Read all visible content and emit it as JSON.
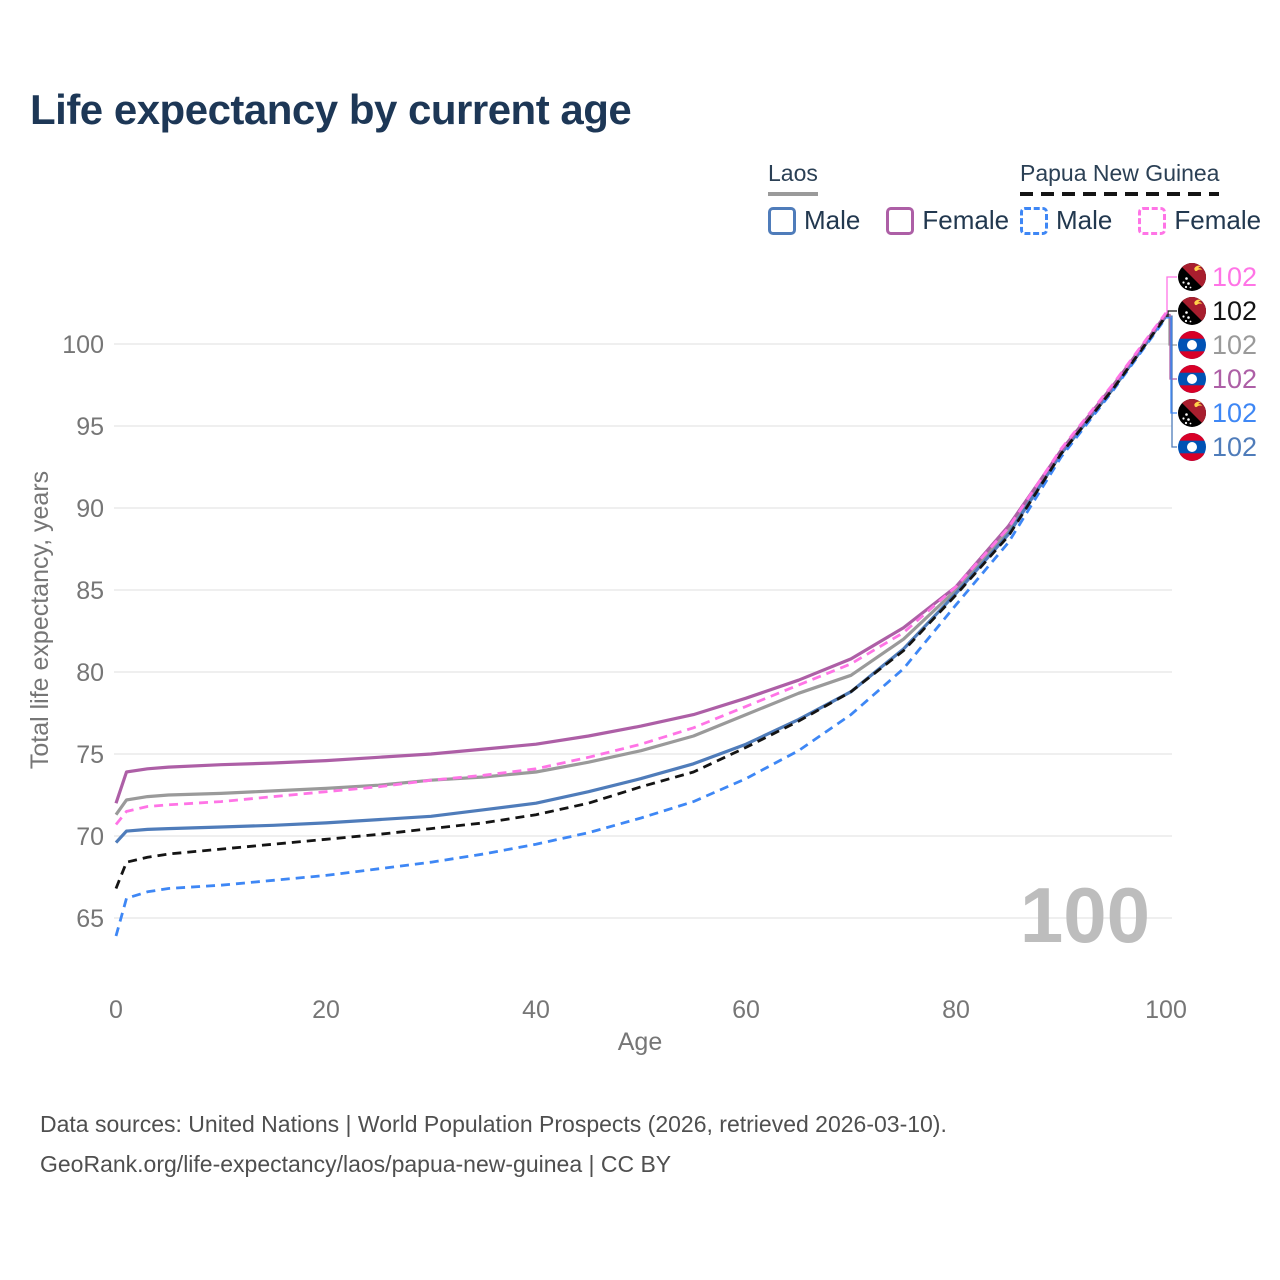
{
  "legend": {
    "laos": {
      "label": "Laos",
      "male": "Male",
      "female": "Female"
    },
    "png": {
      "label": "Papua New Guinea",
      "male": "Male",
      "female": "Female"
    }
  },
  "footer": {
    "line1": "Data sources: United Nations | World Population Prospects (2026, retrieved 2026-03-10).",
    "line2": "GeoRank.org/life-expectancy/laos/papua-new-guinea | CC BY"
  },
  "watermark": "100",
  "colors": {
    "title": "#1d3756",
    "tick_text": "#767676",
    "gridline": "#eaeaea",
    "watermark": "#bdbdbd",
    "footer_text": "#4f4f4f",
    "laos_flag_red": "#d80027",
    "laos_flag_blue": "#0052b4",
    "png_flag_red": "#a81e2e",
    "png_flag_black": "#000000",
    "png_flag_yellow": "#ffd24a"
  },
  "chart_data": {
    "type": "line",
    "title": "Life expectancy by current age",
    "xlabel": "Age",
    "ylabel": "Total life expectancy, years",
    "x_ticks": [
      0,
      20,
      40,
      60,
      80,
      100
    ],
    "y_ticks": [
      65,
      70,
      75,
      80,
      85,
      90,
      95,
      100
    ],
    "xlim": [
      0,
      100
    ],
    "ylim": [
      63,
      103
    ],
    "grid": "horizontal",
    "legend_position": "top-right",
    "x": [
      0,
      1,
      3,
      5,
      10,
      15,
      20,
      25,
      30,
      35,
      40,
      45,
      50,
      55,
      60,
      65,
      70,
      75,
      80,
      85,
      90,
      95,
      100
    ],
    "series": [
      {
        "id": "laos-total",
        "name": "Laos (both sexes)",
        "country": "Laos",
        "sex": "both",
        "style": "solid",
        "color": "#9a9a9a",
        "flag": "laos",
        "end_label": "102",
        "end_label_row": 2,
        "values": [
          71.3,
          72.2,
          72.4,
          72.5,
          72.6,
          72.75,
          72.9,
          73.1,
          73.4,
          73.6,
          73.9,
          74.5,
          75.2,
          76.1,
          77.4,
          78.7,
          79.8,
          82.0,
          85.0,
          88.6,
          93.4,
          97.4,
          101.7
        ]
      },
      {
        "id": "laos-male",
        "name": "Laos Male",
        "country": "Laos",
        "sex": "male",
        "style": "solid",
        "color": "#4f7cba",
        "flag": "laos",
        "end_label": "102",
        "end_label_row": 5,
        "values": [
          69.6,
          70.3,
          70.4,
          70.45,
          70.55,
          70.65,
          70.8,
          71.0,
          71.2,
          71.6,
          72.0,
          72.7,
          73.5,
          74.4,
          75.6,
          77.1,
          78.8,
          81.4,
          84.8,
          88.4,
          93.3,
          97.3,
          101.7
        ]
      },
      {
        "id": "laos-female",
        "name": "Laos Female",
        "country": "Laos",
        "sex": "female",
        "style": "solid",
        "color": "#ad5fa6",
        "flag": "laos",
        "end_label": "102",
        "end_label_row": 3,
        "values": [
          72.0,
          73.9,
          74.1,
          74.2,
          74.35,
          74.45,
          74.6,
          74.8,
          75.0,
          75.3,
          75.6,
          76.1,
          76.7,
          77.4,
          78.4,
          79.5,
          80.8,
          82.7,
          85.2,
          88.9,
          93.5,
          97.5,
          101.8
        ]
      },
      {
        "id": "png-male",
        "name": "Papua New Guinea Male",
        "country": "Papua New Guinea",
        "sex": "male",
        "style": "dashed",
        "color": "#3e87f5",
        "flag": "png",
        "end_label": "102",
        "end_label_row": 4,
        "values": [
          63.9,
          66.2,
          66.6,
          66.8,
          67.0,
          67.3,
          67.6,
          68.0,
          68.4,
          68.9,
          69.5,
          70.2,
          71.1,
          72.1,
          73.5,
          75.2,
          77.4,
          80.2,
          84.1,
          87.9,
          93.1,
          97.2,
          101.6
        ]
      },
      {
        "id": "png-total",
        "name": "Papua New Guinea (both sexes)",
        "country": "Papua New Guinea",
        "sex": "both",
        "style": "dashed",
        "color": "#141414",
        "flag": "png",
        "end_label": "102",
        "end_label_row": 1,
        "values": [
          66.8,
          68.4,
          68.7,
          68.9,
          69.2,
          69.5,
          69.8,
          70.1,
          70.45,
          70.8,
          71.3,
          72.0,
          73.0,
          73.9,
          75.4,
          77.0,
          78.8,
          81.3,
          84.7,
          88.3,
          93.3,
          97.3,
          101.7
        ]
      },
      {
        "id": "png-female",
        "name": "Papua New Guinea Female",
        "country": "Papua New Guinea",
        "sex": "female",
        "style": "dashed",
        "color": "#ff74e6",
        "flag": "png",
        "end_label": "102",
        "end_label_row": 0,
        "values": [
          70.7,
          71.5,
          71.8,
          71.9,
          72.1,
          72.4,
          72.7,
          73.0,
          73.4,
          73.7,
          74.1,
          74.8,
          75.6,
          76.6,
          77.9,
          79.2,
          80.5,
          82.4,
          85.2,
          88.8,
          93.6,
          97.6,
          101.9
        ]
      }
    ]
  }
}
